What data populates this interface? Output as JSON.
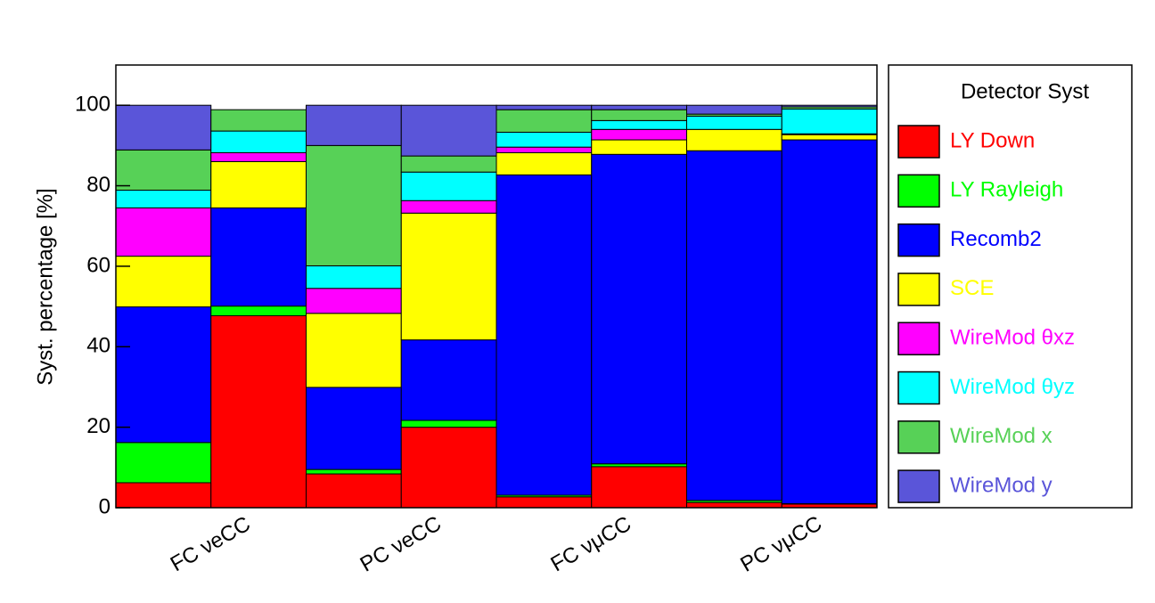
{
  "chart_data": {
    "type": "stacked_histogram",
    "ylabel": "Syst. percentage [%]",
    "legend_title": "Detector Syst",
    "legend": "right",
    "categories": [
      "FC νeCC",
      null,
      "PC νeCC",
      null,
      "FC νμCC",
      null,
      "PC νμCC",
      null
    ],
    "ylim": [
      0,
      110
    ],
    "yticks": [
      0,
      20,
      40,
      60,
      80,
      100
    ],
    "series": [
      {
        "name": "LY Down",
        "color": "#ff0000",
        "values": [
          6.2,
          47.7,
          8.4,
          20.0,
          2.7,
          10.2,
          1.3,
          0.9
        ]
      },
      {
        "name": "LY Rayleigh",
        "color": "#00ff00",
        "values": [
          10.0,
          2.4,
          1.1,
          1.7,
          0.4,
          0.7,
          0.5,
          0.1
        ]
      },
      {
        "name": "Recomb2",
        "color": "#0000ff",
        "values": [
          33.7,
          24.4,
          20.4,
          20.0,
          79.6,
          76.9,
          86.9,
          90.4
        ]
      },
      {
        "name": "SCE",
        "color": "#ffff00",
        "values": [
          12.6,
          11.5,
          18.4,
          31.5,
          5.5,
          3.6,
          5.3,
          1.3
        ]
      },
      {
        "name": "WireMod θxz",
        "color": "#ff00ff",
        "values": [
          12.0,
          2.2,
          6.2,
          3.1,
          1.4,
          2.6,
          0.0,
          0.2
        ]
      },
      {
        "name": "WireMod θyz",
        "color": "#00ffff",
        "values": [
          4.4,
          5.4,
          5.6,
          7.1,
          3.7,
          2.2,
          3.3,
          6.2
        ]
      },
      {
        "name": "WireMod x",
        "color": "#57d157",
        "values": [
          10.0,
          5.3,
          29.9,
          4.0,
          5.6,
          2.7,
          0.5,
          0.5
        ]
      },
      {
        "name": "WireMod y",
        "color": "#5a55d9",
        "values": [
          11.1,
          0,
          10.0,
          12.6,
          1.1,
          1.1,
          2.2,
          0.4
        ]
      }
    ]
  }
}
